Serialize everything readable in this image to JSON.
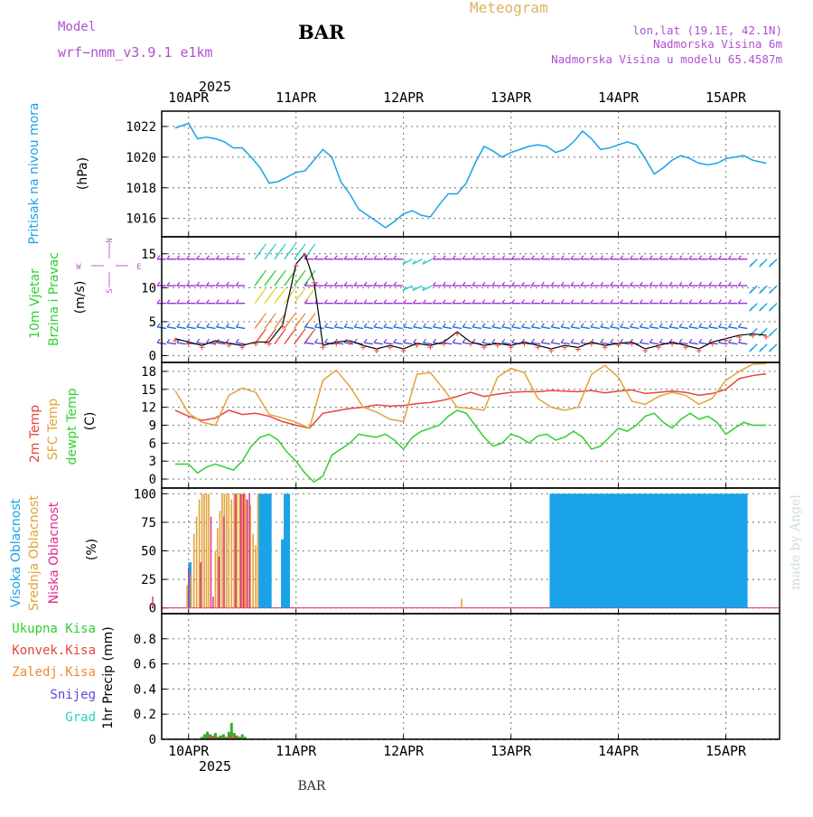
{
  "header": {
    "model_label": "Model",
    "model_name": "wrf−nmm_v3.9.1  e1km",
    "station": "BAR",
    "meteogram_title": "Meteogram",
    "lonlat": "lon,lat (19.1E, 42.1N)",
    "elevation": "Nadmorska Visina 6m",
    "model_elevation": "Nadmorska Visina u modelu 65.4587m"
  },
  "footer": {
    "station": "BAR",
    "credit": "made by Angel"
  },
  "time_axis": {
    "year": "2025",
    "days": [
      "10APR",
      "11APR",
      "12APR",
      "13APR",
      "14APR",
      "15APR"
    ],
    "start_hour": 0,
    "end_hour": 132
  },
  "colors": {
    "pressure": "#1aa3e8",
    "temp2m": "#e8453c",
    "sfc_temp": "#e0a43a",
    "dewpoint": "#2fd02f",
    "cloud_high": "#1aa3e8",
    "cloud_mid": "#e0a43a",
    "cloud_low": "#e0288c",
    "precip_total": "#2fb02f",
    "precip_conv": "#e8453c",
    "precip_frozen": "#f08a30",
    "snow": "#5b4ad6",
    "graupel": "#2ad0c8",
    "wind_label": "#2fd02f",
    "wind_barb": "#a030e0",
    "compass": "#c060d0",
    "header_purple": "#b050d0"
  },
  "chart_data": [
    {
      "type": "line",
      "title": "",
      "ylabel_left": "Pritisak na nivou mora",
      "unit": "(hPa)",
      "ylim": [
        1014.8,
        1023
      ],
      "yticks": [
        1016,
        1018,
        1020,
        1022
      ],
      "series": [
        {
          "name": "",
          "x": [
            -3,
            0,
            2,
            4,
            6,
            8,
            10,
            12,
            14,
            16,
            18,
            20,
            22,
            24,
            26,
            28,
            30,
            32,
            34,
            36,
            38,
            40,
            42,
            44,
            46,
            48,
            50,
            52,
            54,
            56,
            58,
            60,
            62,
            64,
            66,
            68,
            70,
            72,
            74,
            76,
            78,
            80,
            82,
            84,
            86,
            88,
            90,
            92,
            94,
            96,
            98,
            100,
            102,
            104,
            106,
            108,
            110,
            112,
            114,
            116,
            118,
            120,
            122,
            124,
            126,
            129
          ],
          "y": [
            1021.9,
            1022.2,
            1021.2,
            1021.3,
            1021.2,
            1021.0,
            1020.6,
            1020.6,
            1020.0,
            1019.3,
            1018.3,
            1018.4,
            1018.7,
            1019.0,
            1019.1,
            1019.8,
            1020.5,
            1020.0,
            1018.4,
            1017.6,
            1016.6,
            1016.2,
            1015.8,
            1015.4,
            1015.8,
            1016.3,
            1016.5,
            1016.2,
            1016.1,
            1016.9,
            1017.6,
            1017.6,
            1018.3,
            1019.6,
            1020.7,
            1020.4,
            1020.0,
            1020.3,
            1020.5,
            1020.7,
            1020.8,
            1020.7,
            1020.3,
            1020.5,
            1021.0,
            1021.7,
            1021.2,
            1020.5,
            1020.6,
            1020.8,
            1021.0,
            1020.8,
            1019.9,
            1018.9,
            1019.3,
            1019.8,
            1020.1,
            1019.9,
            1019.6,
            1019.5,
            1019.6,
            1019.9,
            1020.0,
            1020.1,
            1019.8,
            1019.6
          ]
        }
      ]
    },
    {
      "type": "scatter",
      "title": "",
      "ylabel_left": [
        "10m Vjetar",
        "Brzina i Pravac"
      ],
      "unit": "(m/s)",
      "ylim": [
        -1,
        17.5
      ],
      "yticks": [
        0,
        5,
        10,
        15
      ],
      "compass": {
        "n": "N",
        "s": "S",
        "w": "W",
        "e": "E"
      },
      "barb_rows": [
        1.5,
        4.2,
        7.5,
        10.5,
        14.0
      ],
      "series": [
        {
          "name": "",
          "x": [
            -3,
            0,
            3,
            6,
            9,
            12,
            15,
            18,
            21,
            24,
            26,
            28,
            30,
            33,
            36,
            39,
            42,
            45,
            48,
            51,
            54,
            57,
            60,
            63,
            66,
            69,
            72,
            75,
            78,
            81,
            84,
            87,
            90,
            93,
            96,
            99,
            102,
            105,
            108,
            111,
            114,
            117,
            120,
            123,
            126,
            129
          ],
          "y": [
            2.5,
            2.0,
            1.5,
            2.2,
            1.8,
            1.5,
            2.0,
            2.0,
            4.5,
            13.5,
            15.0,
            11.0,
            1.5,
            2.0,
            2.2,
            1.5,
            1.0,
            1.5,
            1.0,
            1.8,
            1.5,
            2.0,
            3.5,
            2.0,
            1.5,
            1.8,
            1.5,
            2.0,
            1.5,
            1.0,
            1.5,
            1.2,
            2.0,
            1.5,
            1.8,
            2.0,
            1.0,
            1.5,
            2.0,
            1.5,
            1.0,
            2.0,
            2.5,
            3.0,
            3.2,
            3.0
          ]
        }
      ]
    },
    {
      "type": "line",
      "title": "",
      "ylabel_left": [
        "2m Temp",
        "SFC Temp",
        "dewpt Temp"
      ],
      "unit": "(C)",
      "ylim": [
        -1.5,
        19.5
      ],
      "yticks": [
        0,
        3,
        6,
        9,
        12,
        15,
        18
      ],
      "series": [
        {
          "name": "2m Temp",
          "x": [
            -3,
            0,
            3,
            6,
            9,
            12,
            15,
            18,
            21,
            24,
            27,
            30,
            33,
            36,
            39,
            42,
            45,
            48,
            51,
            54,
            57,
            60,
            63,
            66,
            69,
            72,
            75,
            78,
            81,
            84,
            87,
            90,
            93,
            96,
            99,
            102,
            105,
            108,
            111,
            114,
            117,
            120,
            123,
            126,
            129
          ],
          "y": [
            11.5,
            10.5,
            9.8,
            10.2,
            11.5,
            10.8,
            11.0,
            10.5,
            9.6,
            9.0,
            8.5,
            11.0,
            11.4,
            11.8,
            12.0,
            12.4,
            12.2,
            12.3,
            12.6,
            12.8,
            13.2,
            13.8,
            14.5,
            13.8,
            14.2,
            14.5,
            14.6,
            14.6,
            14.8,
            14.7,
            14.6,
            14.8,
            14.4,
            14.7,
            14.9,
            14.3,
            14.5,
            14.7,
            14.5,
            14.0,
            14.3,
            15.0,
            16.8,
            17.3,
            17.6
          ]
        },
        {
          "name": "SFC Temp",
          "x": [
            -3,
            0,
            3,
            6,
            9,
            12,
            15,
            18,
            21,
            24,
            27,
            30,
            33,
            36,
            39,
            42,
            45,
            48,
            51,
            54,
            57,
            60,
            63,
            66,
            69,
            72,
            75,
            78,
            81,
            84,
            87,
            90,
            93,
            96,
            99,
            102,
            105,
            108,
            111,
            114,
            117,
            120,
            123,
            126,
            129
          ],
          "y": [
            14.8,
            11.0,
            9.5,
            9.0,
            14.0,
            15.2,
            14.5,
            10.8,
            10.2,
            9.5,
            8.5,
            16.5,
            18.2,
            15.5,
            12.0,
            11.2,
            10.0,
            9.6,
            17.5,
            17.8,
            15.0,
            12.0,
            11.8,
            11.5,
            17.0,
            18.5,
            17.8,
            13.5,
            12.0,
            11.5,
            12.0,
            17.5,
            19.0,
            17.0,
            13.0,
            12.5,
            13.8,
            14.5,
            14.0,
            12.5,
            13.5,
            16.5,
            18.0,
            19.2,
            19.3
          ]
        },
        {
          "name": "dewpt Temp",
          "x": [
            -3,
            0,
            2,
            4,
            6,
            8,
            10,
            12,
            14,
            16,
            18,
            20,
            22,
            24,
            26,
            28,
            30,
            32,
            34,
            36,
            38,
            40,
            42,
            44,
            46,
            48,
            50,
            52,
            54,
            56,
            58,
            60,
            62,
            64,
            66,
            68,
            70,
            72,
            74,
            76,
            78,
            80,
            82,
            84,
            86,
            88,
            90,
            92,
            94,
            96,
            98,
            100,
            102,
            104,
            106,
            108,
            110,
            112,
            114,
            116,
            118,
            120,
            122,
            124,
            126,
            129
          ],
          "y": [
            2.5,
            2.5,
            1.0,
            2.0,
            2.5,
            2.0,
            1.5,
            3.0,
            5.5,
            7.0,
            7.5,
            6.5,
            4.5,
            3.0,
            1.0,
            -0.5,
            0.5,
            4.0,
            5.0,
            6.0,
            7.5,
            7.2,
            7.0,
            7.5,
            6.5,
            5.0,
            7.0,
            8.0,
            8.5,
            9.0,
            10.5,
            11.5,
            11.0,
            9.0,
            7.0,
            5.5,
            6.0,
            7.5,
            7.0,
            6.0,
            7.2,
            7.5,
            6.5,
            7.0,
            8.0,
            7.0,
            5.0,
            5.5,
            7.0,
            8.5,
            8.0,
            9.0,
            10.5,
            11.0,
            9.5,
            8.5,
            10.0,
            11.0,
            10.0,
            10.5,
            9.5,
            7.5,
            8.5,
            9.5,
            9.0,
            9.0
          ]
        }
      ]
    },
    {
      "type": "bar",
      "title": "",
      "ylabel_left": [
        "Visoka Oblacnost",
        "Srednja Oblacnost",
        "Niska Oblacnost"
      ],
      "unit": "(%)",
      "ylim": [
        -5,
        105
      ],
      "yticks": [
        0,
        25,
        50,
        75,
        100
      ],
      "series": [
        {
          "name": "Visoka Oblacnost",
          "x": [
            0.3,
            16.0,
            16.6,
            17.2,
            17.7,
            18.2,
            21.0,
            21.6,
            22.3,
            81.0,
            81.5,
            82.0,
            82.5,
            83.0,
            83.5,
            84.0,
            84.5,
            85.0,
            85.5,
            86.0,
            86.5,
            87.0,
            87.5,
            88.0,
            88.5,
            89.0,
            89.5,
            90.0,
            90.5,
            91.0,
            91.5,
            92.0,
            92.5,
            93.0,
            93.5,
            94.0,
            94.5,
            95.0,
            95.5,
            96.0,
            96.5,
            97.0,
            97.5,
            98.0,
            98.5,
            99.0,
            99.5,
            100.0,
            100.5,
            101.0,
            101.5,
            102.0,
            102.5,
            103.0,
            103.5,
            104.0,
            104.5,
            105.0,
            105.5,
            106.0,
            106.5,
            107.0,
            107.5,
            108.0,
            108.5,
            109.0,
            109.5,
            110.0,
            110.5,
            111.0,
            111.5,
            112.0,
            112.5,
            113.0,
            113.5,
            114.0,
            114.5,
            115.0,
            115.5,
            116.0,
            116.5,
            117.0,
            117.5,
            118.0,
            118.5,
            119.0,
            119.5,
            120.0,
            120.5,
            121.0,
            121.5,
            122.0,
            122.5,
            123.0,
            123.5,
            124.0,
            124.5
          ],
          "y": [
            40,
            100,
            100,
            100,
            100,
            100,
            60,
            100,
            100,
            100,
            100,
            100,
            100,
            100,
            100,
            100,
            100,
            100,
            100,
            100,
            100,
            100,
            100,
            100,
            100,
            100,
            100,
            100,
            100,
            100,
            100,
            100,
            100,
            100,
            100,
            100,
            100,
            100,
            100,
            100,
            100,
            100,
            100,
            100,
            100,
            100,
            100,
            100,
            100,
            100,
            100,
            100,
            100,
            100,
            100,
            100,
            100,
            100,
            100,
            100,
            100,
            100,
            100,
            100,
            100,
            100,
            100,
            100,
            100,
            100,
            100,
            100,
            100,
            100,
            100,
            100,
            100,
            100,
            100,
            100,
            100,
            100,
            100,
            100,
            100,
            100,
            100,
            100,
            100,
            100,
            100,
            100,
            100,
            100,
            100,
            100,
            100
          ]
        },
        {
          "name": "Srednja Oblacnost",
          "x": [
            -0.3,
            0.6,
            1.2,
            1.8,
            2.4,
            3.0,
            3.5,
            4.0,
            4.5,
            6.0,
            6.5,
            7.0,
            7.5,
            8.0,
            8.5,
            9.0,
            9.6,
            10.2,
            10.8,
            11.4,
            12.0,
            12.6,
            13.2,
            13.8,
            14.4,
            15.0,
            15.5,
            61.0
          ],
          "y": [
            20,
            30,
            65,
            80,
            95,
            100,
            100,
            100,
            100,
            50,
            70,
            85,
            100,
            100,
            100,
            100,
            95,
            100,
            100,
            100,
            100,
            100,
            95,
            90,
            65,
            55,
            100,
            8
          ]
        },
        {
          "name": "Niska Oblacnost",
          "x": [
            -8.0,
            0.0,
            2.7,
            5.0,
            5.5,
            6.8,
            7.9,
            10.5,
            11.7,
            12.3,
            13.0,
            13.6
          ],
          "y": [
            10,
            35,
            40,
            80,
            10,
            45,
            80,
            100,
            100,
            100,
            95,
            100
          ]
        }
      ]
    },
    {
      "type": "bar",
      "title": "",
      "ylabel_left": [
        "Ukupna Kisa",
        "Konvek.Kisa",
        "Zaledj.Kisa",
        "Snijeg",
        "Grad"
      ],
      "unit": "1hr Precip (mm)",
      "ylim": [
        0,
        1.0
      ],
      "yticks": [
        0,
        0.2,
        0.4,
        0.6,
        0.8
      ],
      "series": [
        {
          "name": "Ukupna Kisa",
          "x": [
            3.0,
            3.6,
            4.2,
            4.8,
            5.4,
            6.0,
            6.6,
            7.2,
            7.8,
            8.4,
            9.0,
            9.6,
            10.2,
            10.8,
            11.4,
            12.0,
            12.6
          ],
          "y": [
            0.02,
            0.04,
            0.06,
            0.04,
            0.03,
            0.05,
            0.02,
            0.03,
            0.04,
            0.02,
            0.06,
            0.13,
            0.05,
            0.03,
            0.02,
            0.04,
            0.02
          ]
        },
        {
          "name": "Konvek.Kisa",
          "x": [
            3.3,
            4.5,
            5.7,
            6.9,
            8.1,
            9.3,
            10.5,
            11.7
          ],
          "y": [
            0.01,
            0.03,
            0.02,
            0.02,
            0.01,
            0.03,
            0.03,
            0.01
          ]
        }
      ]
    }
  ]
}
